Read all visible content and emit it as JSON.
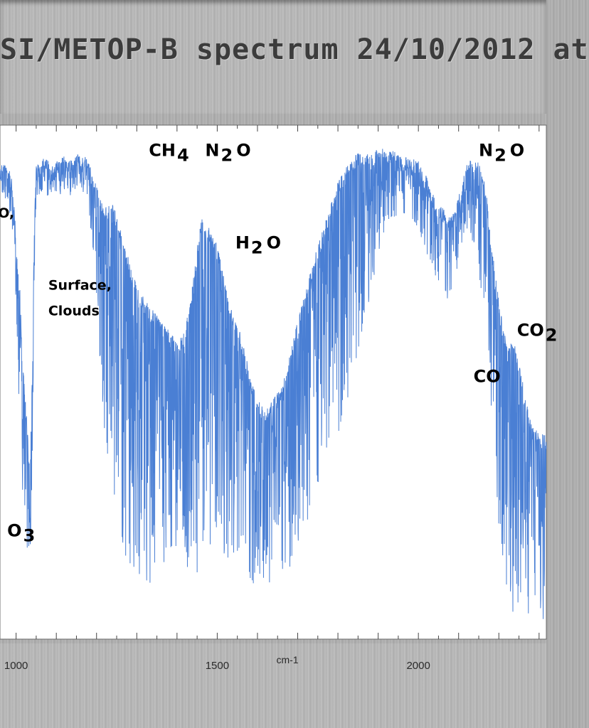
{
  "header": {
    "title": "SI/METOP-B spectrum  24/10/2012 at"
  },
  "chart_data": {
    "type": "line",
    "title": "SI/METOP-B spectrum  24/10/2012 at",
    "xlabel": "cm-1",
    "ylabel": "",
    "xlim": [
      960,
      2318
    ],
    "ylim": [
      0,
      1
    ],
    "x_ticks": [
      1000,
      1500,
      2000
    ],
    "x_tick_labels": [
      "1000",
      "1500",
      "2000"
    ],
    "x_minor_step": 100,
    "grid": false,
    "line_color": "#4a7fd4",
    "series": [
      {
        "name": "",
        "x": [
          960,
          970,
          980,
          985,
          990,
          995,
          1000,
          1005,
          1010,
          1015,
          1020,
          1025,
          1030,
          1035,
          1040,
          1045,
          1050,
          1055,
          1060,
          1070,
          1080,
          1090,
          1100,
          1120,
          1140,
          1160,
          1180,
          1200,
          1220,
          1240,
          1260,
          1280,
          1300,
          1320,
          1340,
          1360,
          1380,
          1400,
          1420,
          1440,
          1460,
          1480,
          1500,
          1520,
          1540,
          1560,
          1580,
          1600,
          1620,
          1640,
          1660,
          1680,
          1700,
          1720,
          1740,
          1760,
          1780,
          1800,
          1820,
          1840,
          1860,
          1880,
          1900,
          1920,
          1940,
          1960,
          1980,
          2000,
          2020,
          2040,
          2060,
          2080,
          2100,
          2120,
          2140,
          2160,
          2170,
          2180,
          2190,
          2200,
          2210,
          2220,
          2240,
          2260,
          2280,
          2300,
          2318
        ],
        "envelope": [
          0.92,
          0.93,
          0.92,
          0.91,
          0.89,
          0.85,
          0.78,
          0.72,
          0.68,
          0.55,
          0.5,
          0.45,
          0.38,
          0.33,
          0.52,
          0.8,
          0.92,
          0.93,
          0.92,
          0.94,
          0.93,
          0.92,
          0.93,
          0.94,
          0.93,
          0.95,
          0.93,
          0.88,
          0.84,
          0.85,
          0.8,
          0.74,
          0.69,
          0.66,
          0.64,
          0.62,
          0.6,
          0.58,
          0.6,
          0.7,
          0.82,
          0.8,
          0.77,
          0.69,
          0.63,
          0.59,
          0.52,
          0.47,
          0.45,
          0.47,
          0.49,
          0.55,
          0.62,
          0.68,
          0.74,
          0.79,
          0.84,
          0.89,
          0.92,
          0.94,
          0.95,
          0.94,
          0.96,
          0.95,
          0.95,
          0.94,
          0.94,
          0.93,
          0.9,
          0.86,
          0.84,
          0.82,
          0.86,
          0.93,
          0.94,
          0.91,
          0.86,
          0.78,
          0.72,
          0.66,
          0.61,
          0.58,
          0.57,
          0.5,
          0.42,
          0.4,
          0.4
        ],
        "floor": [
          0.85,
          0.86,
          0.85,
          0.82,
          0.8,
          0.75,
          0.65,
          0.5,
          0.4,
          0.3,
          0.25,
          0.2,
          0.15,
          0.1,
          0.3,
          0.7,
          0.85,
          0.86,
          0.87,
          0.87,
          0.86,
          0.87,
          0.86,
          0.87,
          0.86,
          0.88,
          0.85,
          0.65,
          0.4,
          0.28,
          0.18,
          0.12,
          0.1,
          0.12,
          0.08,
          0.12,
          0.15,
          0.12,
          0.14,
          0.14,
          0.1,
          0.15,
          0.18,
          0.16,
          0.12,
          0.18,
          0.1,
          0.08,
          0.12,
          0.1,
          0.1,
          0.14,
          0.18,
          0.22,
          0.25,
          0.3,
          0.35,
          0.4,
          0.45,
          0.52,
          0.6,
          0.65,
          0.75,
          0.8,
          0.82,
          0.83,
          0.82,
          0.8,
          0.75,
          0.7,
          0.68,
          0.65,
          0.72,
          0.8,
          0.75,
          0.65,
          0.55,
          0.4,
          0.3,
          0.22,
          0.15,
          0.08,
          0.03,
          0.02,
          0.05,
          0.02,
          0.02
        ]
      }
    ],
    "annotations": [
      {
        "text": "CH",
        "sub": "4",
        "x": 1330,
        "y": 0.94
      },
      {
        "text": "N",
        "sub": "2",
        "after": "O",
        "x": 1470,
        "y": 0.94
      },
      {
        "text": "H",
        "sub": "2",
        "after": "O",
        "x": 1545,
        "y": 0.76
      },
      {
        "text": "N",
        "sub": "2",
        "after": "O",
        "x": 2150,
        "y": 0.94
      },
      {
        "text": "Surface,",
        "x": 1080,
        "y": 0.68,
        "small": true
      },
      {
        "text": "Clouds",
        "x": 1080,
        "y": 0.63,
        "small": true
      },
      {
        "text": "CO",
        "sub": "2",
        "x": 2245,
        "y": 0.59
      },
      {
        "text": "CO",
        "x": 2137,
        "y": 0.5
      },
      {
        "text": "O",
        "sub": "3",
        "x": 978,
        "y": 0.2
      },
      {
        "text": "O,",
        "x": 955,
        "y": 0.82,
        "small": true
      }
    ]
  }
}
